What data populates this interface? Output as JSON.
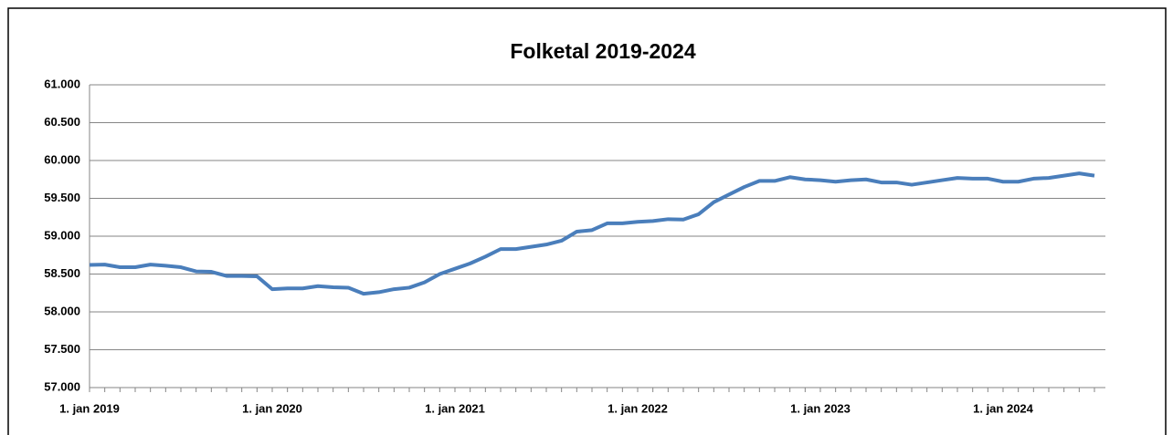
{
  "chart_data": {
    "type": "line",
    "title": "Folketal 2019-2024",
    "categories": [
      "1. jan 2019",
      null,
      null,
      null,
      null,
      null,
      null,
      null,
      null,
      null,
      null,
      null,
      "1. jan 2020",
      null,
      null,
      null,
      null,
      null,
      null,
      null,
      null,
      null,
      null,
      null,
      "1. jan 2021",
      null,
      null,
      null,
      null,
      null,
      null,
      null,
      null,
      null,
      null,
      null,
      "1. jan 2022",
      null,
      null,
      null,
      null,
      null,
      null,
      null,
      null,
      null,
      null,
      null,
      "1. jan 2023",
      null,
      null,
      null,
      null,
      null,
      null,
      null,
      null,
      null,
      null,
      null,
      "1. jan 2024",
      null,
      null,
      null,
      null,
      null,
      null
    ],
    "series": [
      {
        "name": "Folketal",
        "color": "#4a7ebb",
        "values": [
          58620,
          58625,
          58590,
          58590,
          58625,
          58610,
          58590,
          58535,
          58530,
          58475,
          58475,
          58470,
          58300,
          58310,
          58310,
          58340,
          58325,
          58320,
          58240,
          58260,
          58300,
          58320,
          58390,
          58500,
          58570,
          58640,
          58730,
          58830,
          58830,
          58860,
          58890,
          58940,
          59060,
          59080,
          59170,
          59170,
          59190,
          59200,
          59225,
          59220,
          59290,
          59450,
          59550,
          59650,
          59730,
          59730,
          59780,
          59750,
          59740,
          59720,
          59740,
          59750,
          59710,
          59710,
          59680,
          59710,
          59740,
          59770,
          59760,
          59760,
          59720,
          59720,
          59760,
          59770,
          59800,
          59830,
          59800
        ]
      }
    ],
    "ylim": [
      57000,
      61000
    ],
    "yticks": [
      {
        "value": 57000,
        "label": "57.000"
      },
      {
        "value": 57500,
        "label": "57.500"
      },
      {
        "value": 58000,
        "label": "58.000"
      },
      {
        "value": 58500,
        "label": "58.500"
      },
      {
        "value": 59000,
        "label": "59.000"
      },
      {
        "value": 59500,
        "label": "59.500"
      },
      {
        "value": 60000,
        "label": "60.000"
      },
      {
        "value": 60500,
        "label": "60.500"
      },
      {
        "value": 61000,
        "label": "61.000"
      }
    ],
    "grid": true
  }
}
